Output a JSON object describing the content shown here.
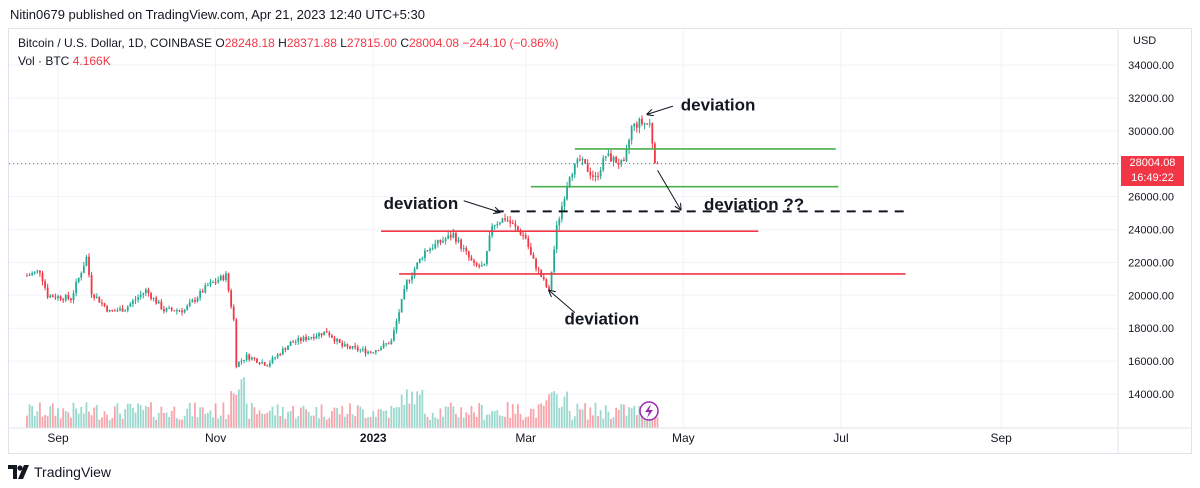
{
  "header": {
    "publisher_line": "Nitin0679 published on TradingView.com, Apr 21, 2023 12:40 UTC+5:30"
  },
  "symbol_bar": {
    "symbol": "Bitcoin / U.S. Dollar, 1D, COINBASE",
    "open_label": "O",
    "open": "28248.18",
    "high_label": "H",
    "high": "28371.88",
    "low_label": "L",
    "low": "27815.00",
    "close_label": "C",
    "close": "28004.08",
    "change": "−244.10 (−0.86%)",
    "volume_label": "Vol · BTC",
    "volume": "4.166K"
  },
  "price_axis": {
    "currency": "USD",
    "last_price": "28004.08",
    "countdown": "16:49:22"
  },
  "footer": {
    "brand": "TradingView"
  },
  "colors": {
    "up": "#22ab94",
    "down": "#f23645",
    "support_red": "#f23645",
    "green_level": "#4caf50",
    "grid": "#f0f3fa"
  },
  "chart_data": {
    "type": "candlestick",
    "title": "Bitcoin / U.S. Dollar, 1D, COINBASE",
    "x_range": [
      "2022-08-20",
      "2023-09-30"
    ],
    "ylim": [
      12500,
      35000
    ],
    "y_ticks": [
      14000,
      16000,
      18000,
      20000,
      22000,
      24000,
      26000,
      28000,
      30000,
      32000,
      34000
    ],
    "y_tick_labels": [
      "14000.00",
      "16000.00",
      "18000.00",
      "20000.00",
      "22000.00",
      "24000.00",
      "26000.00",
      "28000.00",
      "30000.00",
      "32000.00",
      "34000.00"
    ],
    "x_ticks": [
      {
        "date": "2022-09-01",
        "label": "Sep",
        "bold": false
      },
      {
        "date": "2022-11-01",
        "label": "Nov",
        "bold": false
      },
      {
        "date": "2023-01-01",
        "label": "2023",
        "bold": true
      },
      {
        "date": "2023-03-01",
        "label": "Mar",
        "bold": false
      },
      {
        "date": "2023-05-01",
        "label": "May",
        "bold": false
      },
      {
        "date": "2023-07-01",
        "label": "Jul",
        "bold": false
      },
      {
        "date": "2023-09-01",
        "label": "Sep",
        "bold": false
      }
    ],
    "price_path": [
      [
        "2022-08-20",
        21200
      ],
      [
        "2022-08-25",
        21500
      ],
      [
        "2022-08-28",
        20000
      ],
      [
        "2022-09-06",
        19800
      ],
      [
        "2022-09-12",
        22300
      ],
      [
        "2022-09-14",
        20200
      ],
      [
        "2022-09-21",
        19000
      ],
      [
        "2022-09-27",
        19200
      ],
      [
        "2022-10-05",
        20300
      ],
      [
        "2022-10-12",
        19100
      ],
      [
        "2022-10-20",
        19100
      ],
      [
        "2022-10-29",
        20600
      ],
      [
        "2022-11-05",
        21200
      ],
      [
        "2022-11-08",
        18500
      ],
      [
        "2022-11-09",
        15800
      ],
      [
        "2022-11-13",
        16300
      ],
      [
        "2022-11-21",
        15800
      ],
      [
        "2022-11-30",
        17100
      ],
      [
        "2022-12-14",
        17800
      ],
      [
        "2022-12-20",
        16900
      ],
      [
        "2022-12-31",
        16550
      ],
      [
        "2023-01-08",
        17200
      ],
      [
        "2023-01-14",
        20800
      ],
      [
        "2023-01-21",
        22700
      ],
      [
        "2023-02-01",
        23700
      ],
      [
        "2023-02-09",
        21800
      ],
      [
        "2023-02-13",
        21700
      ],
      [
        "2023-02-16",
        24300
      ],
      [
        "2023-02-21",
        24700
      ],
      [
        "2023-03-01",
        23500
      ],
      [
        "2023-03-03",
        22400
      ],
      [
        "2023-03-10",
        20200
      ],
      [
        "2023-03-13",
        24100
      ],
      [
        "2023-03-18",
        27400
      ],
      [
        "2023-03-22",
        28200
      ],
      [
        "2023-03-28",
        27100
      ],
      [
        "2023-04-01",
        28500
      ],
      [
        "2023-04-08",
        27900
      ],
      [
        "2023-04-11",
        30200
      ],
      [
        "2023-04-14",
        30500
      ],
      [
        "2023-04-18",
        30400
      ],
      [
        "2023-04-20",
        28300
      ],
      [
        "2023-04-21",
        28004
      ]
    ],
    "volume": {
      "series": "Vol · BTC",
      "last": "4.166K"
    },
    "levels": [
      {
        "name": "green-resistance-upper",
        "price": 28900,
        "from": "2023-03-20",
        "to": "2023-06-29",
        "color": "green",
        "style": "solid"
      },
      {
        "name": "green-resistance-lower",
        "price": 26600,
        "from": "2023-03-03",
        "to": "2023-06-30",
        "color": "green",
        "style": "solid"
      },
      {
        "name": "dashed-level",
        "price": 25100,
        "from": "2023-02-17",
        "to": "2023-07-28",
        "color": "black",
        "style": "dashed"
      },
      {
        "name": "red-level-upper",
        "price": 23900,
        "from": "2023-01-04",
        "to": "2023-05-30",
        "color": "red",
        "style": "solid"
      },
      {
        "name": "red-level-lower",
        "price": 21300,
        "from": "2023-01-11",
        "to": "2023-07-26",
        "color": "red",
        "style": "solid"
      }
    ],
    "annotations": [
      {
        "text": "deviation",
        "date": "2023-04-30",
        "price": 31600
      },
      {
        "text": "deviation",
        "date": "2023-01-05",
        "price": 25600
      },
      {
        "text": "deviation ??",
        "date": "2023-05-09",
        "price": 25550
      },
      {
        "text": "deviation",
        "date": "2023-03-16",
        "price": 18600
      }
    ]
  }
}
